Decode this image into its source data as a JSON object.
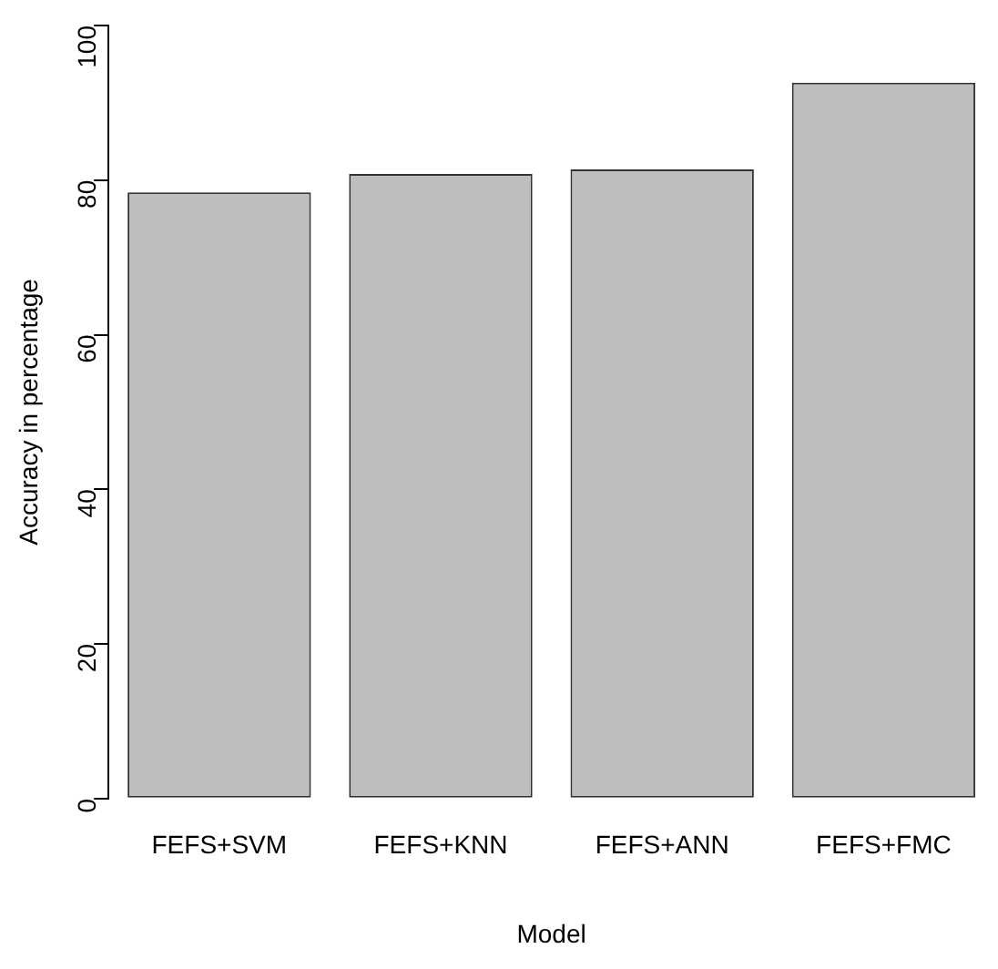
{
  "chart_data": {
    "type": "bar",
    "categories": [
      "FEFS+SVM",
      "FEFS+KNN",
      "FEFS+ANN",
      "FEFS+FMC"
    ],
    "values": [
      78.4,
      80.8,
      81.4,
      92.6
    ],
    "color": "#bebebe",
    "xlabel": "Model",
    "ylabel": "Accuracy in percentage",
    "ylim": [
      0,
      100
    ],
    "yticks": [
      0,
      20,
      40,
      60,
      80,
      100
    ],
    "grid": false,
    "legend": false
  }
}
